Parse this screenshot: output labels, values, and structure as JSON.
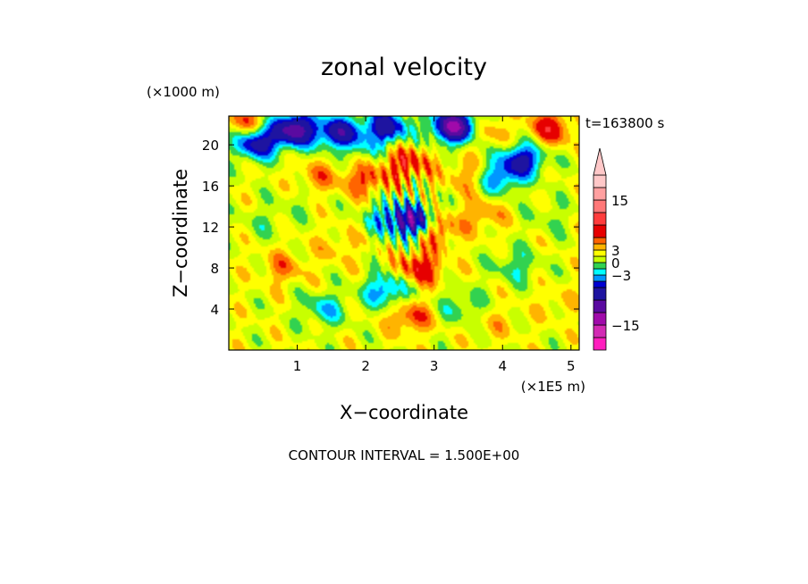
{
  "chart_data": {
    "type": "heatmap",
    "title": "zonal velocity",
    "xlabel": "X−coordinate",
    "ylabel": "Z−coordinate",
    "x_unit": "(×1E5 m)",
    "y_unit": "(×1000 m)",
    "time_label": "t=163800 s",
    "footer": "CONTOUR INTERVAL = 1.500E+00",
    "xlim": [
      0,
      5.12
    ],
    "ylim": [
      0,
      22.8
    ],
    "x_ticks": [
      1,
      2,
      3,
      4,
      5
    ],
    "x_tick_labels": [
      "1",
      "2",
      "3",
      "4",
      "5"
    ],
    "y_ticks": [
      4,
      8,
      12,
      16,
      20
    ],
    "y_tick_labels": [
      "4",
      "8",
      "12",
      "16",
      "20"
    ],
    "contour_interval": 1.5,
    "colorbar": {
      "levels": [
        -21,
        -18,
        -15,
        -12,
        -9,
        -6,
        -4.5,
        -3,
        -1.5,
        0,
        1.5,
        3,
        4.5,
        6,
        9,
        12,
        15,
        18,
        21
      ],
      "colors": [
        "#ff1ebe",
        "#d22ab4",
        "#a00aaa",
        "#5a0aa0",
        "#1e14a0",
        "#0000d2",
        "#0096ff",
        "#00ffff",
        "#32d250",
        "#c8ff00",
        "#ffff00",
        "#ffb400",
        "#ff6400",
        "#e60000",
        "#ff3c3c",
        "#ff7878",
        "#ffa0a0",
        "#ffc8c8"
      ],
      "tick_values": [
        15,
        3,
        0,
        -3,
        -15
      ],
      "tick_labels": [
        "15",
        "3",
        "0",
        "−3",
        "−15"
      ],
      "extend": "max"
    },
    "features": [
      {
        "x": 0.4,
        "z": 20.2,
        "u": -9
      },
      {
        "x": 0.95,
        "z": 21.5,
        "u": -12
      },
      {
        "x": 1.6,
        "z": 21.2,
        "u": -9
      },
      {
        "x": 2.3,
        "z": 21.7,
        "u": -9
      },
      {
        "x": 3.3,
        "z": 21.8,
        "u": -14
      },
      {
        "x": 0.25,
        "z": 22.2,
        "u": 4.5
      },
      {
        "x": 4.7,
        "z": 21.6,
        "u": 6
      },
      {
        "x": 3.75,
        "z": 21.4,
        "u": 3
      },
      {
        "x": 2.6,
        "z": 18.2,
        "u": 6
      },
      {
        "x": 2.0,
        "z": 16.6,
        "u": 4.5
      },
      {
        "x": 1.3,
        "z": 16.8,
        "u": 3
      },
      {
        "x": 3.5,
        "z": 17.0,
        "u": 3
      },
      {
        "x": 4.3,
        "z": 18.6,
        "u": -8
      },
      {
        "x": 3.95,
        "z": 16.8,
        "u": -6
      },
      {
        "x": 2.7,
        "z": 12.5,
        "u": -12
      },
      {
        "x": 2.3,
        "z": 13.0,
        "u": -4
      },
      {
        "x": 3.0,
        "z": 11.8,
        "u": 6
      },
      {
        "x": 3.7,
        "z": 13.2,
        "u": 3
      },
      {
        "x": 0.5,
        "z": 12.5,
        "u": -1.5
      },
      {
        "x": 4.7,
        "z": 13.0,
        "u": -1.5
      },
      {
        "x": 1.6,
        "z": 10.0,
        "u": 2
      },
      {
        "x": 0.8,
        "z": 8.0,
        "u": 3
      },
      {
        "x": 4.2,
        "z": 8.2,
        "u": -3
      },
      {
        "x": 2.8,
        "z": 8.0,
        "u": 6
      },
      {
        "x": 2.3,
        "z": 5.8,
        "u": -6
      },
      {
        "x": 1.4,
        "z": 4.0,
        "u": -4
      },
      {
        "x": 3.4,
        "z": 4.2,
        "u": -3
      },
      {
        "x": 2.65,
        "z": 3.2,
        "u": 4.5
      },
      {
        "x": 3.9,
        "z": 2.6,
        "u": 1.5
      },
      {
        "x": 0.6,
        "z": 2.0,
        "u": 0
      },
      {
        "x": 4.8,
        "z": 4.5,
        "u": 1.5
      },
      {
        "x": 2.0,
        "z": 19.5,
        "u": -2
      },
      {
        "x": 1.0,
        "z": 14.5,
        "u": -1
      }
    ]
  }
}
